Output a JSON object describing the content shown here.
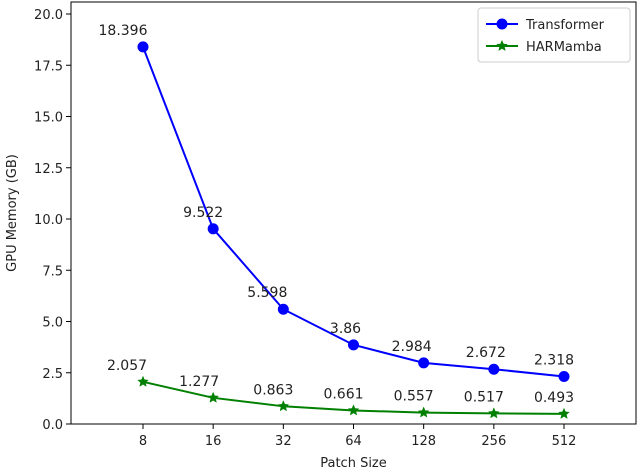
{
  "chart_data": {
    "type": "line",
    "categories": [
      "8",
      "16",
      "32",
      "64",
      "128",
      "256",
      "512"
    ],
    "series": [
      {
        "name": "Transformer",
        "color": "#0000ff",
        "marker": "circle",
        "values": [
          18.396,
          9.522,
          5.598,
          3.86,
          2.984,
          2.672,
          2.318
        ],
        "labels": [
          "18.396",
          "9.522",
          "5.598",
          "3.86",
          "2.984",
          "2.672",
          "2.318"
        ]
      },
      {
        "name": "HARMamba",
        "color": "#008000",
        "marker": "star",
        "values": [
          2.057,
          1.277,
          0.863,
          0.661,
          0.557,
          0.517,
          0.493
        ],
        "labels": [
          "2.057",
          "1.277",
          "0.863",
          "0.661",
          "0.557",
          "0.517",
          "0.493"
        ]
      }
    ],
    "xlabel": "Patch Size",
    "ylabel": "GPU Memory (GB)",
    "ylim": [
      0,
      20.0
    ],
    "yticks": [
      "0.0",
      "2.5",
      "5.0",
      "7.5",
      "10.0",
      "12.5",
      "15.0",
      "17.5",
      "20.0"
    ],
    "grid": false,
    "legend": "top-right"
  }
}
